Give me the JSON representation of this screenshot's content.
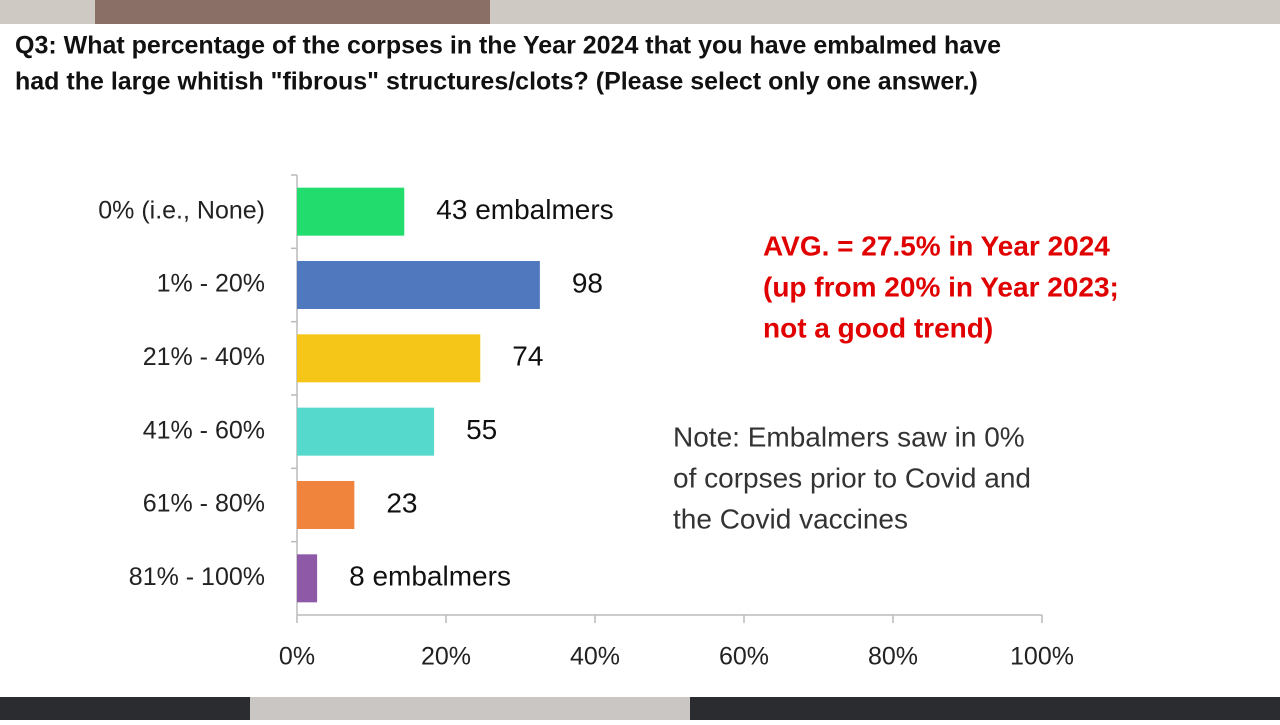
{
  "chart_data": {
    "type": "hbar",
    "title": [
      "Q3: What percentage of the corpses in the Year 2024 that you have embalmed have",
      "had the large whitish \"fibrous\" structures/clots? (Please select only one answer.)"
    ],
    "categories": [
      "0% (i.e., None)",
      "1% - 20%",
      "21% - 40%",
      "41% - 60%",
      "61% - 80%",
      "81% - 100%"
    ],
    "values": [
      14.4,
      32.6,
      24.6,
      18.4,
      7.7,
      2.7
    ],
    "value_labels": [
      "43 embalmers",
      "98",
      "74",
      "55",
      "23",
      "8 embalmers"
    ],
    "colors": [
      "#22dd6e",
      "#4f78bf",
      "#f5c518",
      "#55d9cc",
      "#f0843c",
      "#8e5aa8"
    ],
    "xlim": [
      0,
      100
    ],
    "xticks": [
      {
        "value": 0,
        "label": "0%"
      },
      {
        "value": 20,
        "label": "20%"
      },
      {
        "value": 40,
        "label": "40%"
      },
      {
        "value": 60,
        "label": "60%"
      },
      {
        "value": 80,
        "label": "80%"
      },
      {
        "value": 100,
        "label": "100%"
      }
    ],
    "annotations": [
      [
        "AVG. =  27.5% in Year 2024",
        "(up from 20% in Year 2023;",
        "not a good trend)"
      ],
      [
        "Note:  Embalmers saw in 0%",
        "of corpses prior to Covid and",
        "the Covid vaccines"
      ]
    ]
  }
}
